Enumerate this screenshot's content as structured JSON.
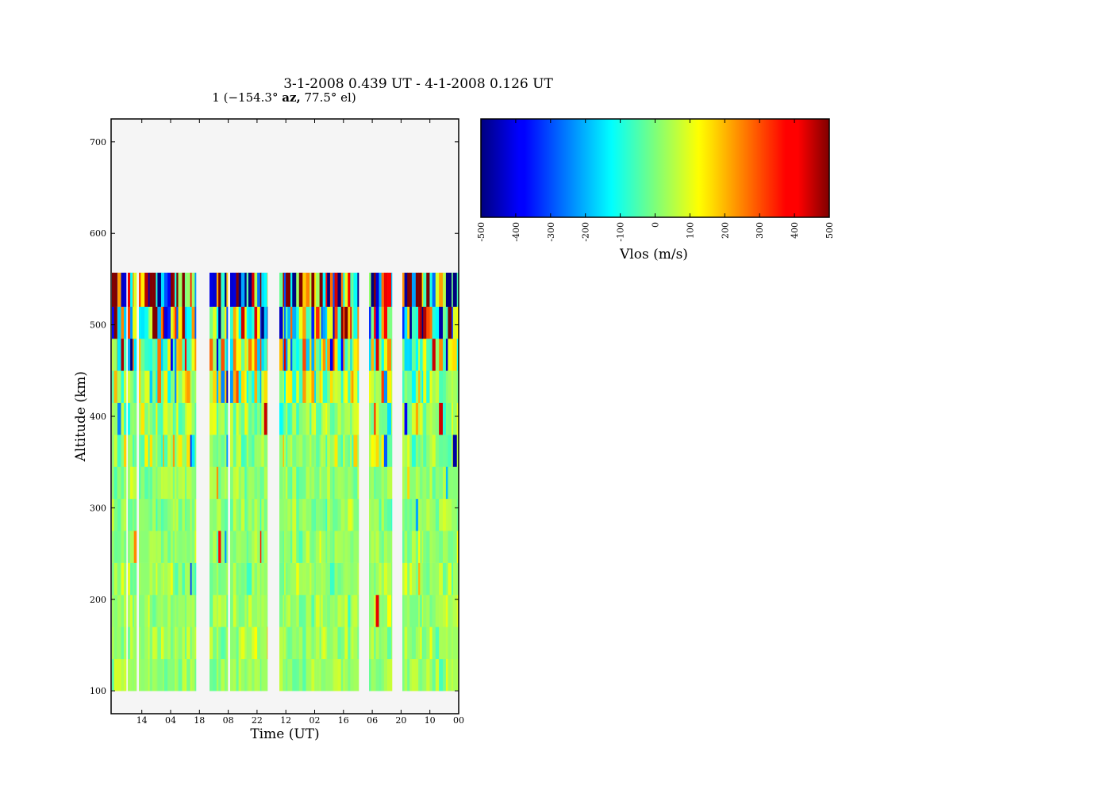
{
  "figure": {
    "title": "3-1-2008 0.439 UT - 4-1-2008 0.126 UT",
    "subtitle_prefix": "1 (−154.3° ",
    "subtitle_bold": "az,",
    "subtitle_suffix": " 77.5° el)"
  },
  "chart_data": [
    {
      "type": "heatmap",
      "xlabel": "Time (UT)",
      "ylabel": "Altitude (km)",
      "ylim": [
        75,
        725
      ],
      "yticks": [
        100,
        200,
        300,
        400,
        500,
        600,
        700
      ],
      "xtick_labels": [
        "14",
        "04",
        "18",
        "08",
        "22",
        "12",
        "02",
        "16",
        "06",
        "20",
        "10",
        "00"
      ],
      "altitude_gates_km": [
        100,
        135,
        170,
        205,
        240,
        275,
        310,
        345,
        380,
        415,
        450,
        485,
        520,
        557
      ],
      "data_gaps": [
        "between 18 and 08",
        "between 22 and 12",
        "between 16 and 06",
        "between 06 and 20"
      ],
      "colormap": "jet",
      "background_color": "#f5f5f5",
      "value_label": "Vlos (m/s)",
      "value_range": [
        -500,
        500
      ]
    },
    {
      "type": "colorbar",
      "label": "Vlos (m/s)",
      "ticks": [
        "-500",
        "-400",
        "-300",
        "-200",
        "-100",
        "0",
        "100",
        "200",
        "300",
        "400",
        "500"
      ],
      "range": [
        -500,
        500
      ],
      "colormap": "jet"
    }
  ]
}
